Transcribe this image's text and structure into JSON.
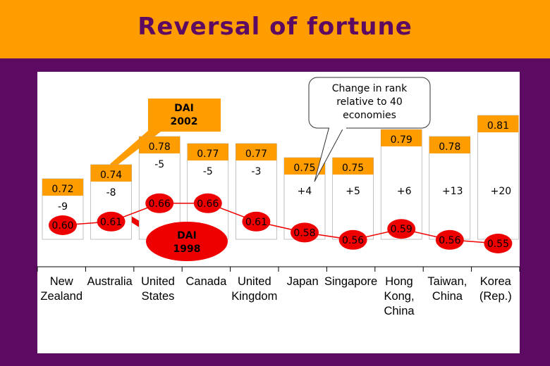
{
  "title": "Reversal of fortune",
  "callouts": {
    "dai_2002": [
      "DAI",
      "2002"
    ],
    "dai_1998": [
      "DAI",
      "1998"
    ],
    "rank_note": [
      "Change in rank",
      "relative to 40",
      "economies"
    ]
  },
  "colors": {
    "background": "#5c0a62",
    "title_bar": "#ff9c00",
    "title_text": "#5c0a62",
    "dai_2002": "#ff9c00",
    "dai_1998": "#ee0000"
  },
  "chart_data": {
    "type": "bar",
    "categories": [
      "New Zealand",
      "Australia",
      "United States",
      "Canada",
      "United Kingdom",
      "Japan",
      "Singapore",
      "Hong Kong, China",
      "Taiwan, China",
      "Korea (Rep.)"
    ],
    "category_lines": [
      [
        "New",
        "Zealand"
      ],
      [
        "Australia"
      ],
      [
        "United",
        "States"
      ],
      [
        "Canada"
      ],
      [
        "United",
        "Kingdom"
      ],
      [
        "Japan"
      ],
      [
        "Singapore"
      ],
      [
        "Hong",
        "Kong,",
        "China"
      ],
      [
        "Taiwan,",
        "China"
      ],
      [
        "Korea",
        "(Rep.)"
      ]
    ],
    "series": [
      {
        "name": "DAI 2002",
        "values": [
          0.72,
          0.74,
          0.78,
          0.77,
          0.77,
          0.75,
          0.75,
          0.79,
          0.78,
          0.81
        ],
        "labels": [
          "0.72",
          "0.74",
          "0.78",
          "0.77",
          "0.77",
          "0.75",
          "0.75",
          "0.79",
          "0.78",
          "0.81"
        ]
      },
      {
        "name": "DAI 1998",
        "values": [
          0.6,
          0.61,
          0.66,
          0.66,
          0.61,
          0.58,
          0.56,
          0.59,
          0.56,
          0.55
        ],
        "labels": [
          "0.60",
          "0.61",
          "0.66",
          "0.66",
          "0.61",
          "0.58",
          "0.56",
          "0.59",
          "0.56",
          "0.55"
        ]
      }
    ],
    "rank_change": [
      "-9",
      "-8",
      "-5",
      "-5",
      "-3",
      "+4",
      "+5",
      "+6",
      "+13",
      "+20"
    ]
  }
}
